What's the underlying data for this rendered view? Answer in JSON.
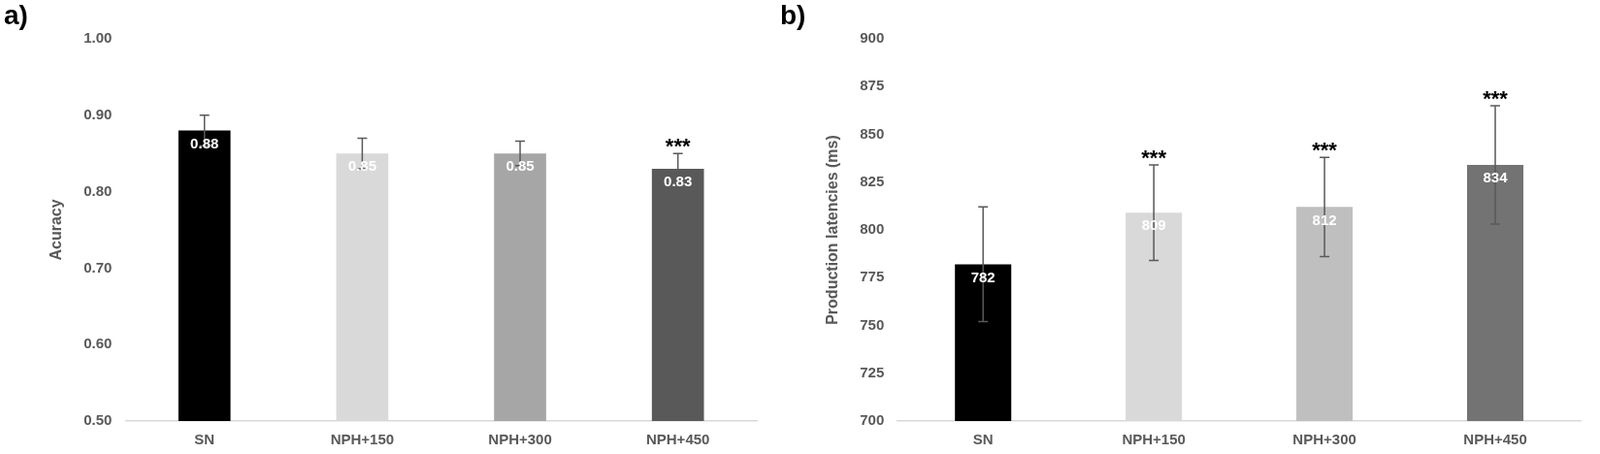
{
  "chart_data": [
    {
      "type": "bar",
      "title": "a)",
      "y_label": "Acuracy",
      "categories": [
        "SN",
        "NPH+150",
        "NPH+300",
        "NPH+450"
      ],
      "values": [
        0.88,
        0.85,
        0.85,
        0.83
      ],
      "errors": [
        0.02,
        0.02,
        0.016,
        0.02
      ],
      "colors": [
        "#000000",
        "#d9d9d9",
        "#a6a6a6",
        "#595959"
      ],
      "ylim": [
        0.5,
        1.0
      ],
      "yticks": [
        {
          "value": 0.5,
          "label": "0.50"
        },
        {
          "value": 0.6,
          "label": "0.60"
        },
        {
          "value": 0.7,
          "label": "0.70"
        },
        {
          "value": 0.8,
          "label": "0.80"
        },
        {
          "value": 0.9,
          "label": "0.90"
        },
        {
          "value": 1.0,
          "label": "1.00"
        }
      ],
      "grid": false,
      "data_labels": true,
      "annotations": [
        {
          "category": "NPH+450",
          "text": "***"
        }
      ]
    },
    {
      "type": "bar",
      "title": "b)",
      "y_label": "Production latencies (ms)",
      "categories": [
        "SN",
        "NPH+150",
        "NPH+300",
        "NPH+450"
      ],
      "values": [
        782,
        809,
        812,
        834
      ],
      "errors": [
        30,
        25,
        26,
        31
      ],
      "colors": [
        "#000000",
        "#d9d9d9",
        "#bfbfbf",
        "#737373"
      ],
      "ylim": [
        700,
        900
      ],
      "yticks": [
        700,
        725,
        750,
        775,
        800,
        825,
        850,
        875,
        900
      ],
      "grid": false,
      "data_labels": true,
      "annotations": [
        {
          "category": "NPH+150",
          "text": "***"
        },
        {
          "category": "NPH+300",
          "text": "***"
        },
        {
          "category": "NPH+450",
          "text": "***"
        }
      ]
    }
  ]
}
